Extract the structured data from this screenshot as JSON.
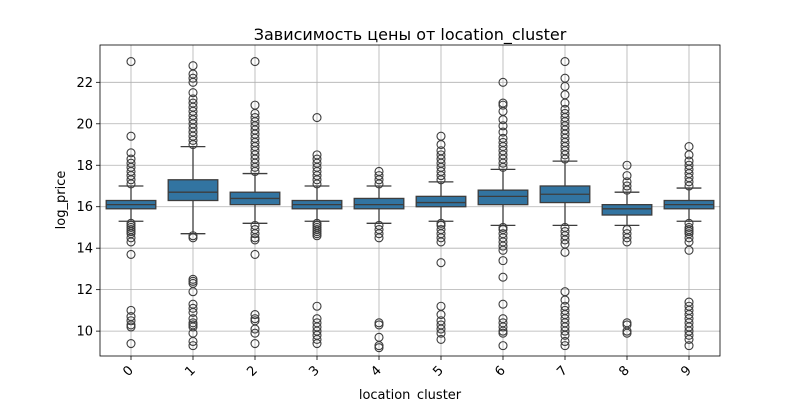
{
  "chart_data": {
    "type": "box",
    "title": "Зависимость цены от location_cluster",
    "xlabel": "location_cluster",
    "ylabel": "log_price",
    "categories": [
      "0",
      "1",
      "2",
      "3",
      "4",
      "5",
      "6",
      "7",
      "8",
      "9"
    ],
    "ylim": [
      8.8,
      23.8
    ],
    "yticks": [
      10,
      12,
      14,
      16,
      18,
      20,
      22
    ],
    "grid": true,
    "box_color": "#3274a1",
    "line_color": "#3d3d3d",
    "boxes": [
      {
        "category": "0",
        "q1": 15.9,
        "median": 16.1,
        "q3": 16.3,
        "whisker_low": 15.3,
        "whisker_high": 17.0,
        "outliers_low": [
          15.2,
          15.1,
          15.0,
          14.9,
          14.8,
          14.7,
          14.5,
          14.3,
          13.7,
          11.0,
          10.7,
          10.5,
          10.3,
          10.2,
          9.4
        ],
        "outliers_high": [
          17.1,
          17.3,
          17.5,
          17.7,
          17.9,
          18.1,
          18.3,
          18.6,
          19.4,
          23.0
        ]
      },
      {
        "category": "1",
        "q1": 16.3,
        "median": 16.7,
        "q3": 17.3,
        "whisker_low": 14.7,
        "whisker_high": 18.9,
        "outliers_low": [
          14.6,
          14.5,
          12.5,
          12.4,
          12.3,
          11.9,
          11.3,
          11.1,
          10.9,
          10.6,
          10.4,
          10.3,
          10.2,
          9.9,
          9.5,
          9.3
        ],
        "outliers_high": [
          19.0,
          19.2,
          19.4,
          19.6,
          19.8,
          20.0,
          20.2,
          20.4,
          20.6,
          20.8,
          21.0,
          21.2,
          21.5,
          22.0,
          22.2,
          22.4,
          22.8
        ]
      },
      {
        "category": "2",
        "q1": 16.1,
        "median": 16.4,
        "q3": 16.7,
        "whisker_low": 15.2,
        "whisker_high": 17.6,
        "outliers_low": [
          15.1,
          14.9,
          14.7,
          14.5,
          14.4,
          13.7,
          10.8,
          10.6,
          10.5,
          10.1,
          9.9,
          9.4
        ],
        "outliers_high": [
          17.7,
          17.9,
          18.1,
          18.3,
          18.5,
          18.7,
          18.9,
          19.1,
          19.3,
          19.5,
          19.7,
          19.9,
          20.1,
          20.3,
          20.5,
          20.9,
          23.0
        ]
      },
      {
        "category": "3",
        "q1": 15.9,
        "median": 16.1,
        "q3": 16.3,
        "whisker_low": 15.3,
        "whisker_high": 17.0,
        "outliers_low": [
          15.2,
          15.1,
          15.0,
          14.9,
          14.8,
          14.7,
          14.6,
          11.2,
          10.6,
          10.4,
          10.2,
          10.0,
          9.8,
          9.6,
          9.4
        ],
        "outliers_high": [
          17.1,
          17.3,
          17.5,
          17.7,
          17.9,
          18.1,
          18.3,
          18.5,
          20.3
        ]
      },
      {
        "category": "4",
        "q1": 15.9,
        "median": 16.1,
        "q3": 16.4,
        "whisker_low": 15.2,
        "whisker_high": 17.0,
        "outliers_low": [
          15.1,
          14.9,
          14.7,
          14.5,
          10.4,
          10.3,
          9.7,
          9.3,
          9.2
        ],
        "outliers_high": [
          17.1,
          17.3,
          17.5,
          17.7
        ]
      },
      {
        "category": "5",
        "q1": 16.0,
        "median": 16.2,
        "q3": 16.5,
        "whisker_low": 15.3,
        "whisker_high": 17.2,
        "outliers_low": [
          15.2,
          15.1,
          14.9,
          14.7,
          14.5,
          14.3,
          13.3,
          11.2,
          10.8,
          10.5,
          10.3,
          10.1,
          9.9,
          9.6
        ],
        "outliers_high": [
          17.3,
          17.5,
          17.7,
          17.9,
          18.1,
          18.3,
          18.5,
          18.7,
          19.0,
          19.4
        ]
      },
      {
        "category": "6",
        "q1": 16.1,
        "median": 16.5,
        "q3": 16.8,
        "whisker_low": 15.1,
        "whisker_high": 17.8,
        "outliers_low": [
          15.0,
          14.9,
          14.7,
          14.5,
          14.3,
          14.1,
          13.9,
          13.4,
          12.6,
          11.3,
          10.6,
          10.4,
          10.2,
          10.0,
          9.9,
          9.3
        ],
        "outliers_high": [
          17.9,
          18.1,
          18.3,
          18.5,
          18.7,
          18.9,
          19.1,
          19.3,
          19.6,
          19.9,
          20.2,
          20.6,
          20.9,
          21.0,
          22.0
        ]
      },
      {
        "category": "7",
        "q1": 16.2,
        "median": 16.6,
        "q3": 17.0,
        "whisker_low": 15.1,
        "whisker_high": 18.2,
        "outliers_low": [
          15.0,
          14.8,
          14.6,
          14.4,
          14.2,
          13.8,
          11.9,
          11.5,
          11.2,
          11.0,
          10.8,
          10.6,
          10.4,
          10.2,
          10.0,
          9.8,
          9.5,
          9.3
        ],
        "outliers_high": [
          18.3,
          18.5,
          18.7,
          18.9,
          19.1,
          19.3,
          19.5,
          19.7,
          19.9,
          20.1,
          20.3,
          20.5,
          20.7,
          21.0,
          21.4,
          21.8,
          22.2,
          23.0
        ]
      },
      {
        "category": "8",
        "q1": 15.6,
        "median": 15.9,
        "q3": 16.1,
        "whisker_low": 15.1,
        "whisker_high": 16.7,
        "outliers_low": [
          14.9,
          14.7,
          14.5,
          14.3,
          10.4,
          10.3,
          10.0,
          9.9
        ],
        "outliers_high": [
          16.8,
          17.0,
          17.2,
          17.5,
          18.0
        ]
      },
      {
        "category": "9",
        "q1": 15.9,
        "median": 16.1,
        "q3": 16.3,
        "whisker_low": 15.3,
        "whisker_high": 16.9,
        "outliers_low": [
          15.2,
          15.0,
          14.9,
          14.8,
          14.7,
          14.5,
          14.3,
          13.9,
          11.4,
          11.2,
          11.0,
          10.8,
          10.6,
          10.4,
          10.2,
          10.0,
          9.8,
          9.6,
          9.3
        ],
        "outliers_high": [
          17.0,
          17.2,
          17.4,
          17.6,
          17.8,
          18.0,
          18.2,
          18.5,
          18.9
        ]
      }
    ]
  }
}
